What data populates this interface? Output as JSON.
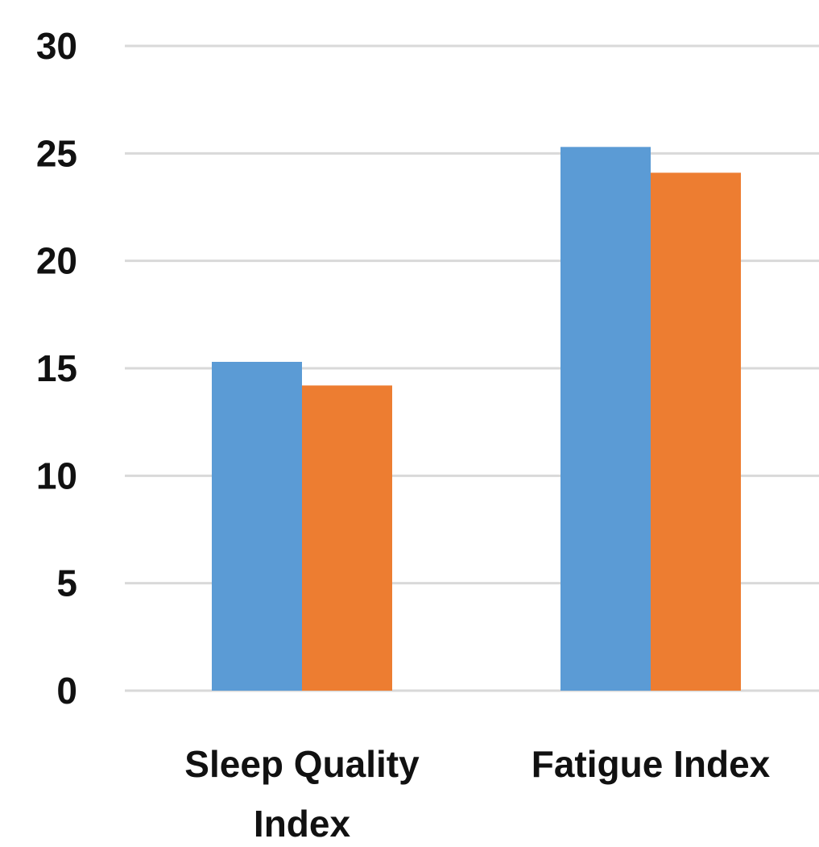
{
  "chart_data": {
    "type": "bar",
    "categories": [
      [
        "Sleep Quality",
        "Index"
      ],
      [
        "Fatigue Index"
      ]
    ],
    "series": [
      {
        "values": [
          15.3,
          25.3
        ],
        "color": "#5b9bd5"
      },
      {
        "values": [
          14.2,
          24.1
        ],
        "color": "#ed7d31"
      }
    ],
    "yticks": [
      "0",
      "5",
      "10",
      "15",
      "20",
      "25",
      "30"
    ],
    "ylim": [
      0,
      30
    ],
    "grid": true,
    "legend": "none",
    "title": "",
    "xlabel": "",
    "ylabel": ""
  }
}
